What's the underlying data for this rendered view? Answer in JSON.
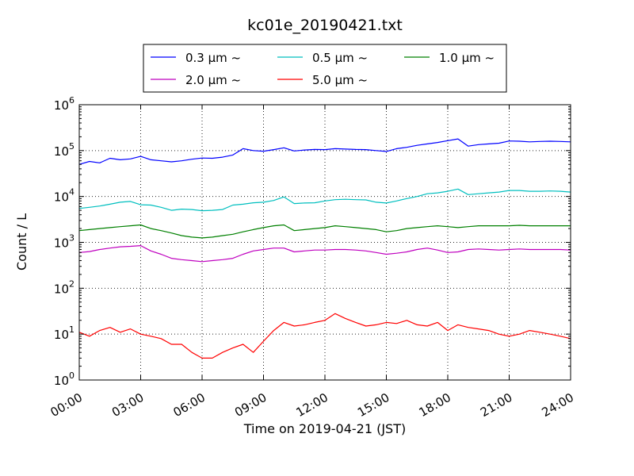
{
  "chart_data": {
    "type": "line",
    "title": "kc01e_20190421.txt",
    "xlabel": "Time on 2019-04-21 (JST)",
    "ylabel": "Count / L",
    "yscale": "log",
    "ylim": [
      1,
      1000000
    ],
    "yticks": [
      1,
      10,
      100,
      1000,
      10000,
      100000,
      1000000
    ],
    "ytick_labels": [
      {
        "base": "10",
        "exp": "0"
      },
      {
        "base": "10",
        "exp": "1"
      },
      {
        "base": "10",
        "exp": "2"
      },
      {
        "base": "10",
        "exp": "3"
      },
      {
        "base": "10",
        "exp": "4"
      },
      {
        "base": "10",
        "exp": "5"
      },
      {
        "base": "10",
        "exp": "6"
      }
    ],
    "xlim": [
      "00:00",
      "24:00"
    ],
    "xtick_labels": [
      "00:00",
      "03:00",
      "06:00",
      "09:00",
      "12:00",
      "15:00",
      "18:00",
      "21:00",
      "24:00"
    ],
    "grid": true,
    "legend_position": "top-center",
    "x": [
      "00:00",
      "00:30",
      "01:00",
      "01:30",
      "02:00",
      "02:30",
      "03:00",
      "03:30",
      "04:00",
      "04:30",
      "05:00",
      "05:30",
      "06:00",
      "06:30",
      "07:00",
      "07:30",
      "08:00",
      "08:30",
      "09:00",
      "09:30",
      "10:00",
      "10:30",
      "11:00",
      "11:30",
      "12:00",
      "12:30",
      "13:00",
      "13:30",
      "14:00",
      "14:30",
      "15:00",
      "15:30",
      "16:00",
      "16:30",
      "17:00",
      "17:30",
      "18:00",
      "18:30",
      "19:00",
      "19:30",
      "20:00",
      "20:30",
      "21:00",
      "21:30",
      "22:00",
      "22:30",
      "23:00",
      "23:30",
      "24:00"
    ],
    "series": [
      {
        "name": "0.3 μm ~",
        "color": "#0000ff",
        "values": [
          50000,
          58000,
          54000,
          68000,
          63000,
          66000,
          75000,
          63000,
          60000,
          57000,
          60000,
          65000,
          69000,
          68000,
          72000,
          80000,
          110000,
          100000,
          97000,
          105000,
          115000,
          98000,
          103000,
          106000,
          105000,
          110000,
          108000,
          106000,
          105000,
          100000,
          96000,
          110000,
          118000,
          130000,
          140000,
          150000,
          165000,
          180000,
          125000,
          135000,
          140000,
          145000,
          162000,
          160000,
          155000,
          158000,
          160000,
          158000,
          155000
        ]
      },
      {
        "name": "0.5 μm ~",
        "color": "#00bfbf",
        "values": [
          5500,
          5800,
          6200,
          6800,
          7500,
          7800,
          6600,
          6500,
          5800,
          5000,
          5300,
          5200,
          4900,
          5000,
          5200,
          6500,
          6800,
          7300,
          7500,
          8200,
          9800,
          7000,
          7200,
          7300,
          8000,
          8500,
          8700,
          8500,
          8400,
          7500,
          7200,
          8000,
          9000,
          10000,
          11500,
          12000,
          13000,
          14500,
          11000,
          11500,
          12000,
          12500,
          13500,
          13500,
          13000,
          13000,
          13200,
          13000,
          12500
        ]
      },
      {
        "name": "1.0 μm ~",
        "color": "#008000",
        "values": [
          1800,
          1900,
          2000,
          2100,
          2200,
          2300,
          2400,
          2000,
          1800,
          1600,
          1400,
          1300,
          1250,
          1300,
          1400,
          1500,
          1700,
          1900,
          2100,
          2300,
          2400,
          1800,
          1900,
          2000,
          2100,
          2300,
          2200,
          2100,
          2000,
          1900,
          1700,
          1800,
          2000,
          2100,
          2200,
          2300,
          2200,
          2100,
          2200,
          2300,
          2300,
          2300,
          2300,
          2350,
          2300,
          2300,
          2300,
          2300,
          2300
        ]
      },
      {
        "name": "2.0 μm ~",
        "color": "#bf00bf",
        "values": [
          600,
          630,
          700,
          750,
          800,
          820,
          850,
          650,
          550,
          450,
          420,
          400,
          380,
          400,
          420,
          450,
          550,
          650,
          700,
          750,
          750,
          620,
          650,
          680,
          680,
          700,
          700,
          680,
          650,
          600,
          550,
          580,
          620,
          700,
          750,
          680,
          600,
          620,
          700,
          720,
          700,
          680,
          700,
          720,
          700,
          700,
          700,
          700,
          680
        ]
      },
      {
        "name": "5.0 μm ~",
        "color": "#ff0000",
        "values": [
          11,
          9,
          12,
          14,
          11,
          13,
          10,
          9,
          8,
          6,
          6,
          4,
          3,
          3,
          4,
          5,
          6,
          4,
          7,
          12,
          18,
          15,
          16,
          18,
          20,
          28,
          22,
          18,
          15,
          16,
          18,
          17,
          20,
          16,
          15,
          18,
          12,
          16,
          14,
          13,
          12,
          10,
          9,
          10,
          12,
          11,
          10,
          9,
          8
        ]
      }
    ]
  }
}
